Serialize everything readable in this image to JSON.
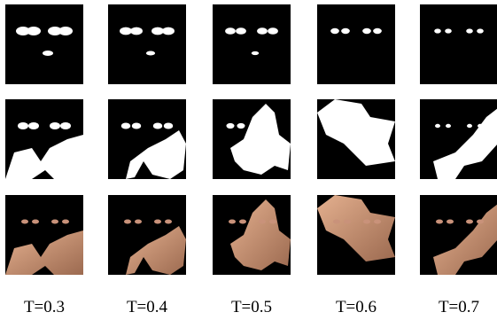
{
  "figure": {
    "columns": [
      {
        "label": "T=0.3"
      },
      {
        "label": "T=0.4"
      },
      {
        "label": "T=0.5"
      },
      {
        "label": "T=0.6"
      },
      {
        "label": "T=0.7"
      }
    ]
  }
}
